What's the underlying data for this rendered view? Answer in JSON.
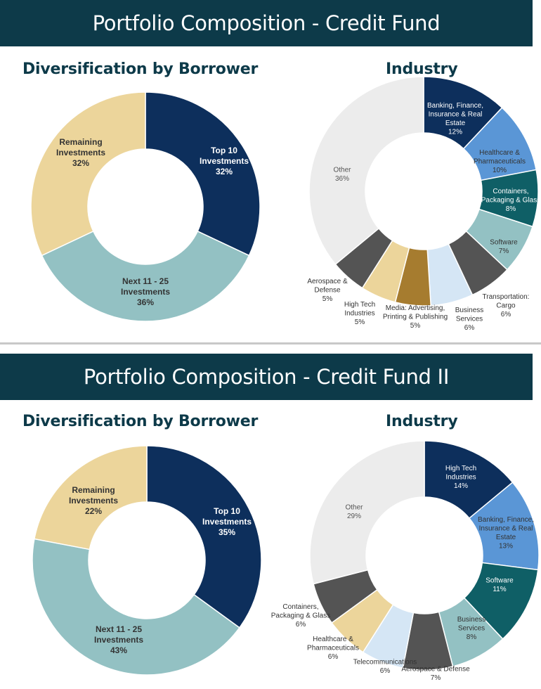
{
  "sections": [
    {
      "title": "Portfolio Composition - Credit Fund",
      "borrower_heading": "Diversification by Borrower",
      "industry_heading": "Industry"
    },
    {
      "title": "Portfolio Composition - Credit Fund II",
      "borrower_heading": "Diversification by Borrower",
      "industry_heading": "Industry"
    }
  ],
  "colors": {
    "header_bg": "#0d3a49",
    "navy": "#0d2f5c",
    "light_blue": "#5a96d6",
    "teal": "#0f5f66",
    "seafoam": "#93c1c3",
    "charcoal": "#545454",
    "pale_blue": "#d5e6f5",
    "olive_gold": "#a67c2f",
    "tan": "#ecd59b",
    "light_gray": "#ececec"
  },
  "chart_data": [
    {
      "type": "pie",
      "title": "Diversification by Borrower",
      "slices": [
        {
          "label": [
            "Top 10",
            "Investments",
            "32%"
          ],
          "value": 32
        },
        {
          "label": [
            "Next 11 - 25",
            "Investments",
            "36%"
          ],
          "value": 36
        },
        {
          "label": [
            "Remaining",
            "Investments",
            "32%"
          ],
          "value": 32
        }
      ]
    },
    {
      "type": "pie",
      "title": "Industry",
      "slices": [
        {
          "label": [
            "Banking, Finance,",
            "Insurance & Real",
            "Estate",
            "12%"
          ],
          "value": 12
        },
        {
          "label": [
            "Healthcare &",
            "Pharmaceuticals",
            "10%"
          ],
          "value": 10
        },
        {
          "label": [
            "Containers,",
            "Packaging & Glass",
            "8%"
          ],
          "value": 8
        },
        {
          "label": [
            "Software",
            "7%"
          ],
          "value": 7
        },
        {
          "label": [
            "Transportation:",
            "Cargo",
            "6%"
          ],
          "value": 6
        },
        {
          "label": [
            "Business",
            "Services",
            "6%"
          ],
          "value": 6
        },
        {
          "label": [
            "Media: Advertising,",
            "Printing & Publishing",
            "5%"
          ],
          "value": 5
        },
        {
          "label": [
            "High Tech",
            "Industries",
            "5%"
          ],
          "value": 5
        },
        {
          "label": [
            "Aerospace &",
            "Defense",
            "5%"
          ],
          "value": 5
        },
        {
          "label": [
            "Other",
            "36%"
          ],
          "value": 36
        }
      ]
    },
    {
      "type": "pie",
      "title": "Diversification by Borrower",
      "slices": [
        {
          "label": [
            "Top 10",
            "Investments",
            "35%"
          ],
          "value": 35
        },
        {
          "label": [
            "Next 11 - 25",
            "Investments",
            "43%"
          ],
          "value": 43
        },
        {
          "label": [
            "Remaining",
            "Investments",
            "22%"
          ],
          "value": 22
        }
      ]
    },
    {
      "type": "pie",
      "title": "Industry",
      "slices": [
        {
          "label": [
            "High Tech",
            "Industries",
            "14%"
          ],
          "value": 14
        },
        {
          "label": [
            "Banking, Finance,",
            "Insurance & Real",
            "Estate",
            "13%"
          ],
          "value": 13
        },
        {
          "label": [
            "Software",
            "11%"
          ],
          "value": 11
        },
        {
          "label": [
            "Business",
            "Services",
            "8%"
          ],
          "value": 8
        },
        {
          "label": [
            "Aerospace & Defense",
            "7%"
          ],
          "value": 7
        },
        {
          "label": [
            "Telecommunications",
            "6%"
          ],
          "value": 6
        },
        {
          "label": [
            "Healthcare &",
            "Pharmaceuticals",
            "6%"
          ],
          "value": 6
        },
        {
          "label": [
            "Containers,",
            "Packaging & Glass",
            "6%"
          ],
          "value": 6
        },
        {
          "label": [
            "Other",
            "29%"
          ],
          "value": 29
        }
      ]
    }
  ]
}
